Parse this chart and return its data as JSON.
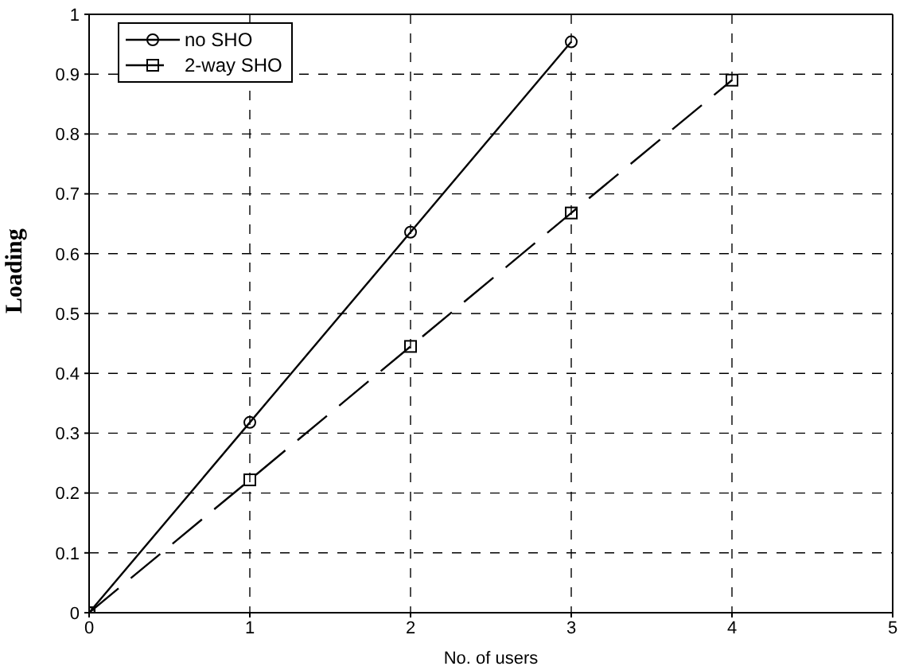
{
  "chart_data": {
    "type": "line",
    "xlabel": "No. of users",
    "ylabel": "Loading",
    "xlim": [
      0,
      5
    ],
    "xticks": [
      0,
      1,
      2,
      3,
      4,
      5
    ],
    "ylim": [
      0,
      1
    ],
    "yticks": [
      0,
      0.1,
      0.2,
      0.3,
      0.4,
      0.5,
      0.6,
      0.7,
      0.8,
      0.9,
      1
    ],
    "grid": true,
    "legend": "top left",
    "series": [
      {
        "name": "no SHO",
        "color": "#000000",
        "marker": "circle",
        "line_style": "solid",
        "x": [
          0,
          1,
          2,
          3
        ],
        "values": [
          0,
          0.318,
          0.636,
          0.954
        ]
      },
      {
        "name": "2-way SHO",
        "color": "#000000",
        "marker": "square",
        "line_style": "dashed",
        "x": [
          0,
          1,
          2,
          3,
          4
        ],
        "values": [
          0,
          0.222,
          0.445,
          0.668,
          0.89
        ]
      }
    ]
  }
}
